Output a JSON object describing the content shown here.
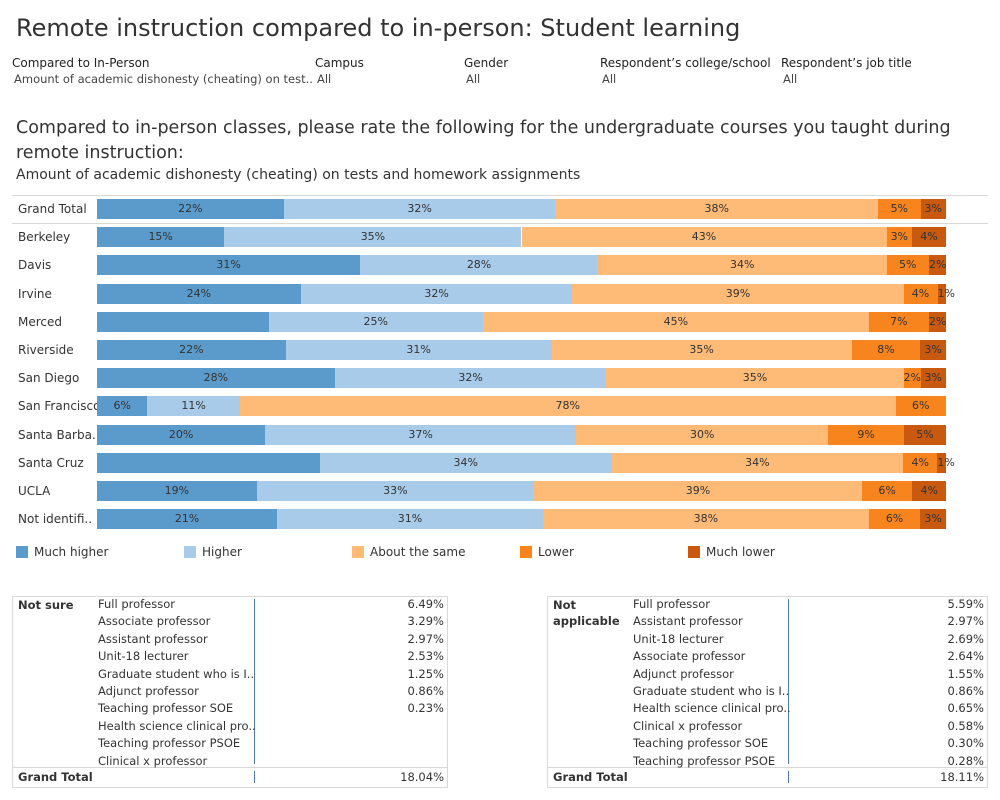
{
  "title": "Remote instruction compared to in-person: Student learning",
  "filters": [
    {
      "label": "Compared to In-Person",
      "value": "Amount of academic dishonesty (cheating) on test.."
    },
    {
      "label": "Campus",
      "value": "All"
    },
    {
      "label": "Gender",
      "value": "All"
    },
    {
      "label": "Respondent’s college/school",
      "value": "All"
    },
    {
      "label": "Respondent’s job title",
      "value": "All"
    }
  ],
  "question": "Compared to in-person classes, please rate the following for the undergraduate courses you taught during remote instruction:",
  "subquestion": "Amount of academic dishonesty (cheating) on tests and homework assignments",
  "colors": {
    "much_higher": "#5b9bcb",
    "higher": "#a7cbe8",
    "about_same": "#fdbb77",
    "lower": "#f8841d",
    "much_lower": "#c9590f"
  },
  "chart_data": {
    "type": "bar",
    "orientation": "horizontal",
    "stacked": true,
    "normalized": true,
    "categories": [
      "Grand Total",
      "Berkeley",
      "Davis",
      "Irvine",
      "Merced",
      "Riverside",
      "San Diego",
      "San Francisco",
      "Santa Barba..",
      "Santa Cruz",
      "UCLA",
      "Not identifi.."
    ],
    "series": [
      {
        "name": "Much higher",
        "color": "#5b9bcb",
        "values": [
          22,
          15,
          31,
          24,
          20,
          22,
          28,
          6,
          20,
          26,
          19,
          21
        ],
        "labels": [
          "22%",
          "15%",
          "31%",
          "24%",
          "",
          "22%",
          "28%",
          "6%",
          "20%",
          "",
          "19%",
          "21%"
        ]
      },
      {
        "name": "Higher",
        "color": "#a7cbe8",
        "values": [
          32,
          35,
          28,
          32,
          25,
          31,
          32,
          11,
          37,
          34,
          33,
          31
        ],
        "labels": [
          "32%",
          "35%",
          "28%",
          "32%",
          "25%",
          "31%",
          "32%",
          "11%",
          "37%",
          "34%",
          "33%",
          "31%"
        ]
      },
      {
        "name": "About the same",
        "color": "#fdbb77",
        "values": [
          38,
          43,
          34,
          39,
          45,
          35,
          35,
          78,
          30,
          34,
          39,
          38
        ],
        "labels": [
          "38%",
          "43%",
          "34%",
          "39%",
          "45%",
          "35%",
          "35%",
          "78%",
          "30%",
          "34%",
          "39%",
          "38%"
        ]
      },
      {
        "name": "Lower",
        "color": "#f8841d",
        "values": [
          5,
          3,
          5,
          4,
          7,
          8,
          2,
          6,
          9,
          4,
          6,
          6
        ],
        "labels": [
          "5%",
          "3%",
          "5%",
          "4%",
          "7%",
          "8%",
          "2%",
          "6%",
          "9%",
          "4%",
          "6%",
          "6%"
        ]
      },
      {
        "name": "Much lower",
        "color": "#c9590f",
        "values": [
          3,
          4,
          2,
          1,
          2,
          3,
          3,
          0,
          5,
          1,
          4,
          3
        ],
        "labels": [
          "3%",
          "4%",
          "2%",
          "1%",
          "2%",
          "3%",
          "3%",
          "",
          "5%",
          "1%",
          "4%",
          "3%"
        ]
      }
    ],
    "legend": "bottom"
  },
  "tables": [
    {
      "group": "Not sure",
      "rows": [
        {
          "label": "Full professor",
          "value": "6.49%"
        },
        {
          "label": "Associate professor",
          "value": "3.29%"
        },
        {
          "label": "Assistant professor",
          "value": "2.97%"
        },
        {
          "label": "Unit-18 lecturer",
          "value": "2.53%"
        },
        {
          "label": "Graduate student who is I..",
          "value": "1.25%"
        },
        {
          "label": "Adjunct professor",
          "value": "0.86%"
        },
        {
          "label": "Teaching professor SOE",
          "value": "0.23%"
        },
        {
          "label": "Health science clinical pro..",
          "value": ""
        },
        {
          "label": "Teaching professor PSOE",
          "value": ""
        },
        {
          "label": "Clinical x professor",
          "value": ""
        }
      ],
      "total_label": "Grand Total",
      "total_value": "18.04%"
    },
    {
      "group": "Not applicable",
      "rows": [
        {
          "label": "Full professor",
          "value": "5.59%"
        },
        {
          "label": "Assistant professor",
          "value": "2.97%"
        },
        {
          "label": "Unit-18 lecturer",
          "value": "2.69%"
        },
        {
          "label": "Associate professor",
          "value": "2.64%"
        },
        {
          "label": "Adjunct professor",
          "value": "1.55%"
        },
        {
          "label": "Graduate student who is I..",
          "value": "0.86%"
        },
        {
          "label": "Health science clinical pro..",
          "value": "0.65%"
        },
        {
          "label": "Clinical x professor",
          "value": "0.58%"
        },
        {
          "label": "Teaching professor SOE",
          "value": "0.30%"
        },
        {
          "label": "Teaching professor PSOE",
          "value": "0.28%"
        }
      ],
      "total_label": "Grand Total",
      "total_value": "18.11%"
    }
  ]
}
